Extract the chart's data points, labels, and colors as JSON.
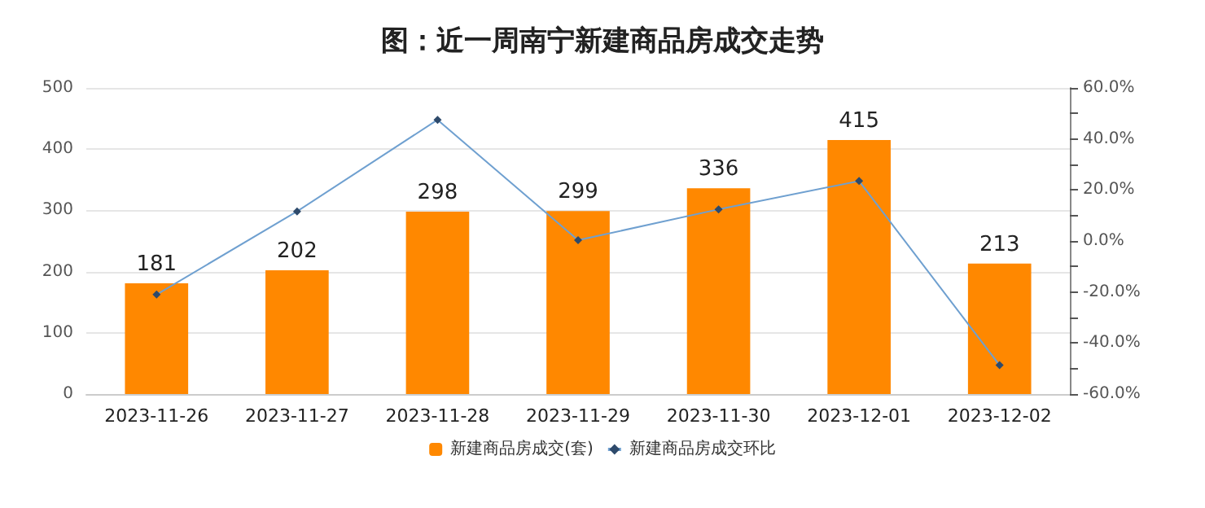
{
  "chart_data": {
    "type": "bar",
    "title": "图：近一周南宁新建商品房成交走势",
    "categories": [
      "2023-11-26",
      "2023-11-27",
      "2023-11-28",
      "2023-11-29",
      "2023-11-30",
      "2023-12-01",
      "2023-12-02"
    ],
    "series": [
      {
        "name": "新建商品房成交(套)",
        "color": "#ff8800",
        "values": [
          181,
          202,
          298,
          299,
          336,
          415,
          213
        ],
        "value_labels": [
          "181",
          "202",
          "298",
          "299",
          "336",
          "415",
          "213"
        ]
      },
      {
        "name": "新建商品房成交环比",
        "type": "line",
        "axis": "y2",
        "color": "#6fa0d0",
        "marker": "diamond",
        "values": [
          -21,
          11.6,
          47.5,
          0.3,
          12.4,
          23.5,
          -48.7
        ]
      }
    ],
    "ylim": [
      0,
      500
    ],
    "yticks": [
      0,
      100,
      200,
      300,
      400,
      500
    ],
    "y2lim": [
      -60,
      60
    ],
    "y2ticks": [
      {
        "value": -60,
        "label": "-60.0%"
      },
      {
        "value": -50,
        "label": null
      },
      {
        "value": -40,
        "label": "-40.0%"
      },
      {
        "value": -30,
        "label": null
      },
      {
        "value": -20,
        "label": "-20.0%"
      },
      {
        "value": -10,
        "label": null
      },
      {
        "value": 0,
        "label": "0.0%"
      },
      {
        "value": 10,
        "label": null
      },
      {
        "value": 20,
        "label": "20.0%"
      },
      {
        "value": 30,
        "label": null
      },
      {
        "value": 40,
        "label": "40.0%"
      },
      {
        "value": 50,
        "label": null
      },
      {
        "value": 60,
        "label": "60.0%"
      }
    ],
    "grid": "y",
    "legend": "bottom"
  }
}
